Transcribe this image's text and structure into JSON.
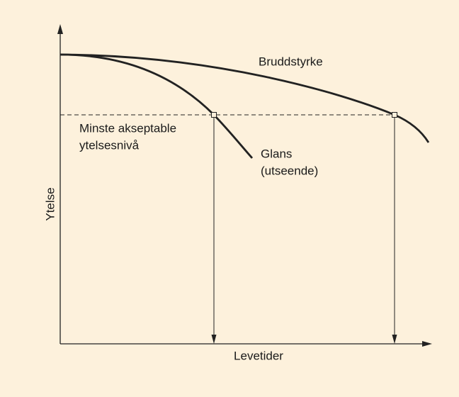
{
  "axes": {
    "y_label": "Ytelse",
    "x_label": "Levetider"
  },
  "curves": [
    {
      "label": "Bruddstyrke"
    },
    {
      "label_lines": [
        "Glans",
        "(utseende)"
      ]
    }
  ],
  "threshold": {
    "label_lines": [
      "Minste akseptable",
      "ytelsesnivå"
    ]
  }
}
